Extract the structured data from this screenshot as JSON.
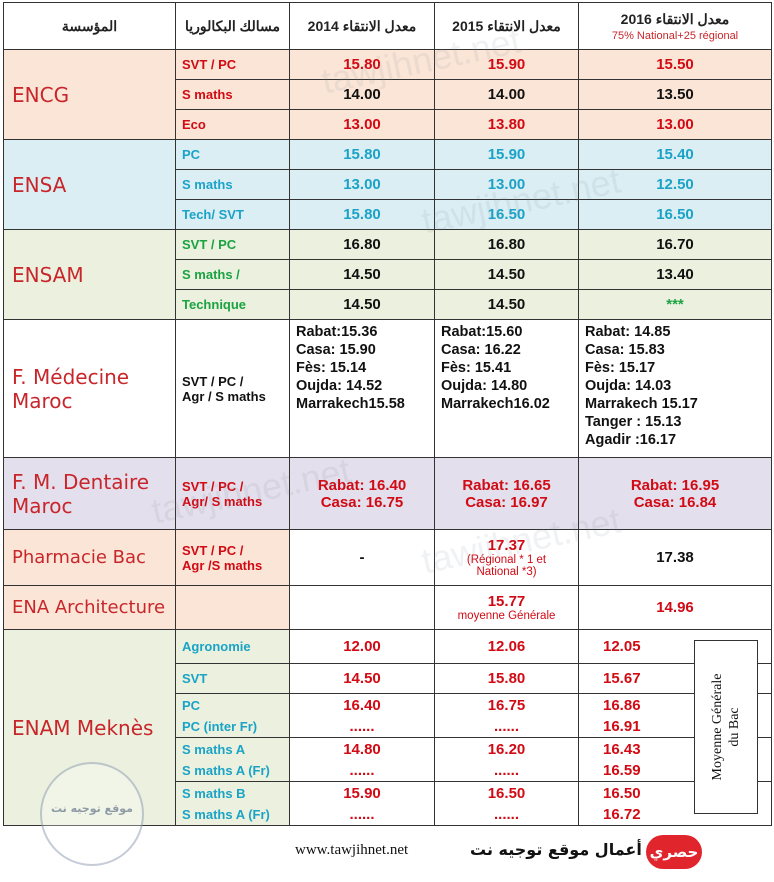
{
  "header": {
    "institution": "المؤسسة",
    "filiere": "مسالك البكالوريا",
    "y2014": "معدل الانتقاء 2014",
    "y2015": "معدل الانتقاء 2015",
    "y2016": "معدل الانتقاء 2016",
    "y2016_note": "75% National+25 régional"
  },
  "encg": {
    "name": "ENCG",
    "rows": [
      {
        "filiere": "SVT / PC",
        "v2014": "15.80",
        "v2015": "15.90",
        "v2016": "15.50"
      },
      {
        "filiere": "S maths",
        "v2014": "14.00",
        "v2015": "14.00",
        "v2016": "13.50"
      },
      {
        "filiere": "Eco",
        "v2014": "13.00",
        "v2015": "13.80",
        "v2016": "13.00"
      }
    ]
  },
  "ensa": {
    "name": "ENSA",
    "rows": [
      {
        "filiere": "PC",
        "v2014": "15.80",
        "v2015": "15.90",
        "v2016": "15.40"
      },
      {
        "filiere": "S maths",
        "v2014": "13.00",
        "v2015": "13.00",
        "v2016": "12.50"
      },
      {
        "filiere": "Tech/ SVT",
        "v2014": "15.80",
        "v2015": "16.50",
        "v2016": "16.50"
      }
    ]
  },
  "ensam": {
    "name": "ENSAM",
    "rows": [
      {
        "filiere": "SVT / PC",
        "v2014": "16.80",
        "v2015": "16.80",
        "v2016": "16.70"
      },
      {
        "filiere": "S maths /",
        "v2014": "14.50",
        "v2015": "14.50",
        "v2016": "13.40"
      },
      {
        "filiere": "Technique",
        "v2014": "14.50",
        "v2015": "14.50",
        "v2016": "***"
      }
    ]
  },
  "medecine": {
    "name_line1": "F. Médecine",
    "name_line2": "Maroc",
    "filiere_line1": "SVT / PC /",
    "filiere_line2": "Agr / S maths",
    "c2014": [
      "Rabat:15.36",
      "Casa:  15.90",
      "Fès:    15.14",
      "Oujda: 14.52",
      "Marrakech15.58"
    ],
    "c2015": [
      "Rabat:15.60",
      "Casa:  16.22",
      "Fès:    15.41",
      "Oujda: 14.80",
      "Marrakech16.02"
    ],
    "c2016": [
      "Rabat:  14.85",
      "Casa:   15.83",
      "Fès:    15.17",
      "Oujda: 14.03",
      "Marrakech  15.17",
      "Tanger  : 15.13",
      "Agadir :16.17"
    ]
  },
  "dentaire": {
    "name_line1": "F. M. Dentaire",
    "name_line2": "Maroc",
    "filiere_line1": "SVT / PC /",
    "filiere_line2": "Agr/ S maths",
    "c2014": [
      "Rabat: 16.40",
      "Casa: 16.75"
    ],
    "c2015": [
      "Rabat: 16.65",
      "Casa: 16.97"
    ],
    "c2016": [
      "Rabat: 16.95",
      "Casa: 16.84"
    ]
  },
  "pharmacie": {
    "name": "Pharmacie Bac",
    "filiere_line1": "SVT / PC /",
    "filiere_line2": "Agr /S maths",
    "v2014": "-",
    "v2015": "17.37",
    "v2015_note1": "(Régional * 1 et",
    "v2015_note2": "National *3)",
    "v2016": "17.38"
  },
  "ena": {
    "name": "ENA Architecture",
    "v2015": "15.77",
    "v2015_note": "moyenne Générale",
    "v2016": "14.96"
  },
  "enam": {
    "name": "ENAM Meknès",
    "rows": [
      {
        "f": [
          "Agronomie"
        ],
        "v2014": [
          "12.00"
        ],
        "v2015": [
          "12.06"
        ],
        "v2016": [
          "12.05"
        ]
      },
      {
        "f": [
          "SVT"
        ],
        "v2014": [
          "14.50"
        ],
        "v2015": [
          "15.80"
        ],
        "v2016": [
          "15.67"
        ]
      },
      {
        "f": [
          "PC",
          "PC (inter Fr)"
        ],
        "v2014": [
          "16.40",
          "......"
        ],
        "v2015": [
          "16.75",
          "......"
        ],
        "v2016": [
          "16.86",
          "16.91"
        ]
      },
      {
        "f": [
          "S maths A",
          "S maths A (Fr)"
        ],
        "v2014": [
          "14.80",
          "......"
        ],
        "v2015": [
          "16.20",
          "......"
        ],
        "v2016": [
          "16.43",
          "16.59"
        ]
      },
      {
        "f": [
          "S maths B",
          "S maths A (Fr)"
        ],
        "v2014": [
          "15.90",
          "......"
        ],
        "v2015": [
          "16.50",
          "......"
        ],
        "v2016": [
          "16.50",
          "16.72"
        ]
      }
    ],
    "side_note_line1": "Moyenne Générale",
    "side_note_line2": "du Bac"
  },
  "footer": {
    "site": "www.tawjihnet.net",
    "arabic": "من أعمال موقع توجيه نت",
    "badge": "حصري"
  },
  "watermark": {
    "text": "tawjihnet.net",
    "stamp": "موقع توجيه نت"
  }
}
